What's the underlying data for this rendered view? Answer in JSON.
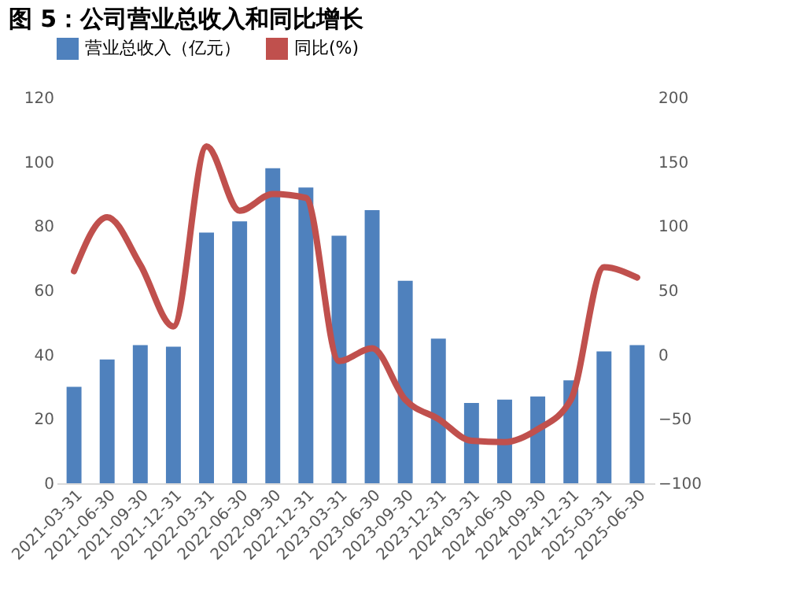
{
  "chart_data": {
    "type": "bar",
    "title": "图 5：公司营业总收入和同比增长",
    "categories": [
      "2021-03-31",
      "2021-06-30",
      "2021-09-30",
      "2021-12-31",
      "2022-03-31",
      "2022-06-30",
      "2022-09-30",
      "2022-12-31",
      "2023-03-31",
      "2023-06-30",
      "2023-09-30",
      "2023-12-31",
      "2024-03-31",
      "2024-06-30",
      "2024-09-30",
      "2024-12-31",
      "2025-03-31",
      "2025-06-30"
    ],
    "series": [
      {
        "name": "营业总收入（亿元）",
        "color": "#4f81bd",
        "values": [
          30,
          38.5,
          43,
          42.5,
          78,
          81.5,
          98,
          92,
          77,
          85,
          63,
          45,
          25,
          26,
          27,
          32,
          41,
          43
        ]
      },
      {
        "name": "同比(%)",
        "type": "line",
        "axis": "y2",
        "color": "#c0504d",
        "values": [
          65,
          107,
          70,
          22,
          162,
          112,
          125,
          122,
          -5,
          5,
          -35,
          -50,
          -67,
          -68,
          -58,
          -35,
          68,
          60
        ]
      }
    ],
    "ylim": [
      0,
      120
    ],
    "yticks": [
      0,
      20,
      40,
      60,
      80,
      100,
      120
    ],
    "y2lim": [
      -100,
      200
    ],
    "y2ticks": [
      -100,
      -50,
      0,
      50,
      100,
      150,
      200
    ],
    "grid": false,
    "legend": "top",
    "marker": "none",
    "line_style": "solid"
  }
}
